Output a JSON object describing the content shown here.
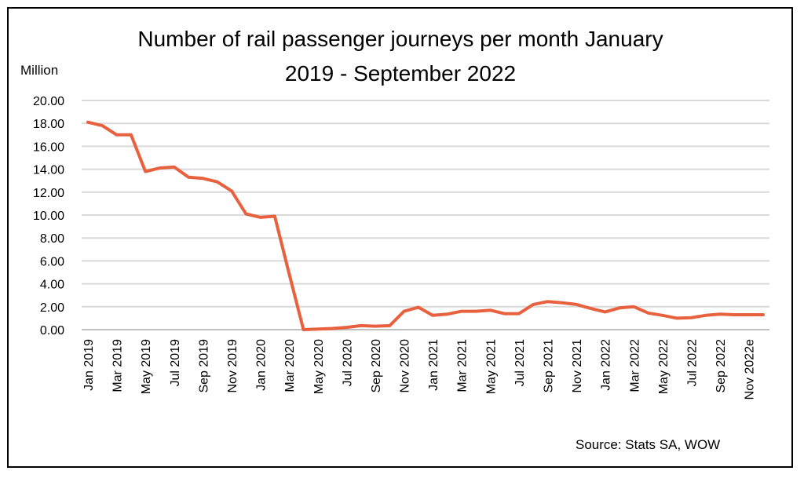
{
  "chart_data": {
    "type": "line",
    "title_lines": [
      "Number of rail passenger journeys per month January",
      "2019 - September 2022"
    ],
    "unit_label": "Million",
    "source": "Source: Stats SA, WOW",
    "ylim": [
      0,
      20
    ],
    "yticks": [
      "0.00",
      "2.00",
      "4.00",
      "6.00",
      "8.00",
      "10.00",
      "12.00",
      "14.00",
      "16.00",
      "18.00",
      "20.00"
    ],
    "grid": true,
    "line_color": "#E8613F",
    "x": [
      "Jan 2019",
      "Feb 2019",
      "Mar 2019",
      "Apr 2019",
      "May 2019",
      "Jun 2019",
      "Jul 2019",
      "Aug 2019",
      "Sep 2019",
      "Oct 2019",
      "Nov 2019",
      "Dec 2019",
      "Jan 2020",
      "Feb 2020",
      "Mar 2020",
      "Apr 2020",
      "May 2020",
      "Jun 2020",
      "Jul 2020",
      "Aug 2020",
      "Sep 2020",
      "Oct 2020",
      "Nov 2020",
      "Dec 2020",
      "Jan 2021",
      "Feb 2021",
      "Mar 2021",
      "Apr 2021",
      "May 2021",
      "Jun 2021",
      "Jul 2021",
      "Aug 2021",
      "Sep 2021",
      "Oct 2021",
      "Nov 2021",
      "Dec 2021",
      "Jan 2022",
      "Feb 2022",
      "Mar 2022",
      "Apr 2022",
      "May 2022",
      "Jun 2022",
      "Jul 2022",
      "Aug 2022",
      "Sep 2022",
      "Oct 2022",
      "Nov 2022e",
      "Dec 2022e"
    ],
    "xtick_labels": [
      "Jan 2019",
      "Mar 2019",
      "May 2019",
      "Jul 2019",
      "Sep 2019",
      "Nov 2019",
      "Jan 2020",
      "Mar 2020",
      "May 2020",
      "Jul 2020",
      "Sep 2020",
      "Nov 2020",
      "Jan 2021",
      "Mar 2021",
      "May 2021",
      "Jul 2021",
      "Sep 2021",
      "Nov 2021",
      "Jan 2022",
      "Mar 2022",
      "May 2022",
      "Jul 2022",
      "Sep 2022",
      "Nov 2022e"
    ],
    "series": [
      {
        "values": [
          18.1,
          17.8,
          17.0,
          17.0,
          13.8,
          14.1,
          14.2,
          13.3,
          13.2,
          12.9,
          12.1,
          10.1,
          9.8,
          9.9,
          4.9,
          0.0,
          0.05,
          0.1,
          0.2,
          0.35,
          0.3,
          0.35,
          1.6,
          1.95,
          1.25,
          1.35,
          1.6,
          1.6,
          1.7,
          1.4,
          1.4,
          2.2,
          2.45,
          2.35,
          2.2,
          1.85,
          1.55,
          1.9,
          2.0,
          1.45,
          1.25,
          1.0,
          1.05,
          1.25,
          1.35,
          1.3,
          1.3,
          1.3
        ]
      }
    ]
  }
}
